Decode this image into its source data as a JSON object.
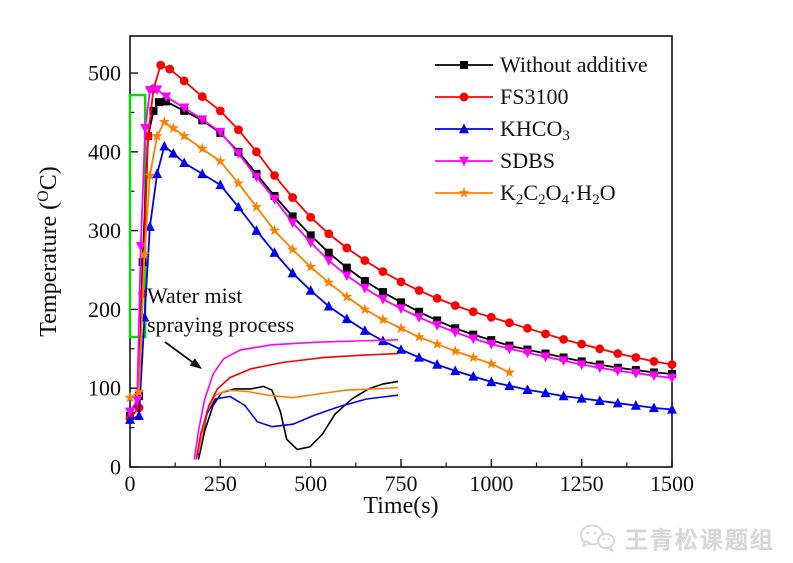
{
  "watermark": {
    "text": "王青松课题组",
    "icon": "wechat-icon",
    "color": "#d7d7d7"
  },
  "chart_data": {
    "type": "line",
    "title": "",
    "xlabel": "Time(s)",
    "ylabel": "Temperature (ᴼC)",
    "ylabel_parts": [
      {
        "text": "Temperature ("
      },
      {
        "text": "O",
        "style": "sup"
      },
      {
        "text": "C)"
      }
    ],
    "xlim": [
      0,
      1500
    ],
    "ylim": [
      0,
      500
    ],
    "x_ticks": [
      0,
      250,
      500,
      750,
      1000,
      1250,
      1500
    ],
    "x_minor_ticks": [
      125,
      375,
      625,
      875,
      1125,
      1375
    ],
    "y_ticks": [
      0,
      100,
      200,
      300,
      400,
      500
    ],
    "y_minor_ticks": [
      50,
      150,
      250,
      350,
      450
    ],
    "grid": false,
    "legend_position": "inside-top-right",
    "series": [
      {
        "name": "Without additive",
        "color": "#000000",
        "marker": "square",
        "label_parts": [
          {
            "text": "Without additive"
          }
        ],
        "points": [
          [
            0,
            65
          ],
          [
            25,
            90
          ],
          [
            35,
            260
          ],
          [
            50,
            420
          ],
          [
            65,
            452
          ],
          [
            80,
            463
          ],
          [
            100,
            464
          ],
          [
            150,
            452
          ],
          [
            200,
            440
          ],
          [
            250,
            424
          ],
          [
            300,
            400
          ],
          [
            350,
            372
          ],
          [
            400,
            344
          ],
          [
            450,
            318
          ],
          [
            500,
            294
          ],
          [
            550,
            272
          ],
          [
            600,
            253
          ],
          [
            650,
            236
          ],
          [
            700,
            222
          ],
          [
            750,
            209
          ],
          [
            800,
            197
          ],
          [
            850,
            186
          ],
          [
            900,
            176
          ],
          [
            950,
            168
          ],
          [
            1000,
            161
          ],
          [
            1050,
            154
          ],
          [
            1100,
            149
          ],
          [
            1150,
            144
          ],
          [
            1200,
            139
          ],
          [
            1250,
            134
          ],
          [
            1300,
            130
          ],
          [
            1350,
            126
          ],
          [
            1400,
            123
          ],
          [
            1450,
            120
          ],
          [
            1500,
            118
          ]
        ]
      },
      {
        "name": "FS3100",
        "color": "#ff0000",
        "marker": "circle",
        "label_parts": [
          {
            "text": "FS3100"
          }
        ],
        "points": [
          [
            0,
            62
          ],
          [
            25,
            75
          ],
          [
            35,
            220
          ],
          [
            50,
            420
          ],
          [
            65,
            480
          ],
          [
            85,
            510
          ],
          [
            110,
            505
          ],
          [
            150,
            490
          ],
          [
            200,
            470
          ],
          [
            250,
            452
          ],
          [
            300,
            428
          ],
          [
            350,
            400
          ],
          [
            400,
            370
          ],
          [
            450,
            342
          ],
          [
            500,
            317
          ],
          [
            550,
            296
          ],
          [
            600,
            278
          ],
          [
            650,
            262
          ],
          [
            700,
            248
          ],
          [
            750,
            235
          ],
          [
            800,
            224
          ],
          [
            850,
            214
          ],
          [
            900,
            205
          ],
          [
            950,
            197
          ],
          [
            1000,
            190
          ],
          [
            1050,
            183
          ],
          [
            1100,
            176
          ],
          [
            1150,
            169
          ],
          [
            1200,
            162
          ],
          [
            1250,
            156
          ],
          [
            1300,
            150
          ],
          [
            1350,
            144
          ],
          [
            1400,
            139
          ],
          [
            1450,
            134
          ],
          [
            1500,
            130
          ]
        ]
      },
      {
        "name": "KHCO3",
        "color": "#0000ee",
        "marker": "triangle-up",
        "label_parts": [
          {
            "text": "KHCO"
          },
          {
            "text": "3",
            "style": "sub"
          }
        ],
        "points": [
          [
            0,
            60
          ],
          [
            25,
            65
          ],
          [
            40,
            190
          ],
          [
            55,
            305
          ],
          [
            75,
            372
          ],
          [
            95,
            407
          ],
          [
            120,
            398
          ],
          [
            150,
            386
          ],
          [
            200,
            372
          ],
          [
            250,
            358
          ],
          [
            300,
            330
          ],
          [
            350,
            300
          ],
          [
            400,
            272
          ],
          [
            450,
            246
          ],
          [
            500,
            224
          ],
          [
            550,
            204
          ],
          [
            600,
            188
          ],
          [
            650,
            173
          ],
          [
            700,
            160
          ],
          [
            750,
            149
          ],
          [
            800,
            139
          ],
          [
            850,
            130
          ],
          [
            900,
            122
          ],
          [
            950,
            115
          ],
          [
            1000,
            108
          ],
          [
            1050,
            103
          ],
          [
            1100,
            98
          ],
          [
            1150,
            94
          ],
          [
            1200,
            90
          ],
          [
            1250,
            87
          ],
          [
            1300,
            84
          ],
          [
            1350,
            81
          ],
          [
            1400,
            78
          ],
          [
            1450,
            75
          ],
          [
            1500,
            73
          ]
        ]
      },
      {
        "name": "SDBS",
        "color": "#ff00ff",
        "marker": "triangle-down",
        "label_parts": [
          {
            "text": "SDBS"
          }
        ],
        "points": [
          [
            0,
            70
          ],
          [
            20,
            85
          ],
          [
            30,
            280
          ],
          [
            42,
            430
          ],
          [
            55,
            478
          ],
          [
            75,
            479
          ],
          [
            100,
            470
          ],
          [
            150,
            456
          ],
          [
            200,
            441
          ],
          [
            250,
            425
          ],
          [
            300,
            398
          ],
          [
            350,
            368
          ],
          [
            400,
            340
          ],
          [
            450,
            310
          ],
          [
            500,
            285
          ],
          [
            550,
            262
          ],
          [
            600,
            243
          ],
          [
            650,
            227
          ],
          [
            700,
            213
          ],
          [
            750,
            201
          ],
          [
            800,
            190
          ],
          [
            850,
            180
          ],
          [
            900,
            171
          ],
          [
            950,
            163
          ],
          [
            1000,
            156
          ],
          [
            1050,
            150
          ],
          [
            1100,
            145
          ],
          [
            1150,
            140
          ],
          [
            1200,
            135
          ],
          [
            1250,
            130
          ],
          [
            1300,
            126
          ],
          [
            1350,
            122
          ],
          [
            1400,
            119
          ],
          [
            1450,
            116
          ],
          [
            1500,
            113
          ]
        ]
      },
      {
        "name": "K2C2O4·H2O",
        "color": "#ff8000",
        "marker": "star",
        "label_parts": [
          {
            "text": "K"
          },
          {
            "text": "2",
            "style": "sub"
          },
          {
            "text": "C"
          },
          {
            "text": "2",
            "style": "sub"
          },
          {
            "text": "O"
          },
          {
            "text": "4",
            "style": "sub"
          },
          {
            "text": "·H"
          },
          {
            "text": "2",
            "style": "sub"
          },
          {
            "text": "O"
          }
        ],
        "points": [
          [
            0,
            88
          ],
          [
            25,
            95
          ],
          [
            40,
            270
          ],
          [
            55,
            370
          ],
          [
            75,
            420
          ],
          [
            95,
            438
          ],
          [
            120,
            430
          ],
          [
            150,
            420
          ],
          [
            200,
            404
          ],
          [
            250,
            388
          ],
          [
            300,
            360
          ],
          [
            350,
            330
          ],
          [
            400,
            300
          ],
          [
            450,
            276
          ],
          [
            500,
            254
          ],
          [
            550,
            234
          ],
          [
            600,
            216
          ],
          [
            650,
            200
          ],
          [
            700,
            187
          ],
          [
            750,
            176
          ],
          [
            800,
            165
          ],
          [
            850,
            156
          ],
          [
            900,
            147
          ],
          [
            950,
            139
          ],
          [
            1000,
            131
          ],
          [
            1050,
            120
          ]
        ]
      }
    ],
    "annotation": {
      "lines": [
        "Water mist",
        "spraying process"
      ],
      "has_arrow": true
    },
    "highlight_box": {
      "t_range": [
        0,
        42
      ],
      "T_range": [
        165,
        472
      ],
      "color": "#00dd00"
    },
    "inset": {
      "description": "marker-less zoom of curves during water mist spraying",
      "series": [
        {
          "color": "#000000",
          "points_norm": [
            [
              0.05,
              0.98
            ],
            [
              0.08,
              0.75
            ],
            [
              0.12,
              0.55
            ],
            [
              0.16,
              0.45
            ],
            [
              0.22,
              0.42
            ],
            [
              0.3,
              0.42
            ],
            [
              0.36,
              0.4
            ],
            [
              0.4,
              0.43
            ],
            [
              0.44,
              0.6
            ],
            [
              0.47,
              0.82
            ],
            [
              0.52,
              0.9
            ],
            [
              0.58,
              0.88
            ],
            [
              0.64,
              0.78
            ],
            [
              0.7,
              0.62
            ],
            [
              0.78,
              0.5
            ],
            [
              0.86,
              0.42
            ],
            [
              0.93,
              0.38
            ],
            [
              1,
              0.36
            ]
          ]
        },
        {
          "color": "#0000ee",
          "points_norm": [
            [
              0.05,
              0.95
            ],
            [
              0.09,
              0.62
            ],
            [
              0.13,
              0.5
            ],
            [
              0.2,
              0.48
            ],
            [
              0.27,
              0.55
            ],
            [
              0.33,
              0.68
            ],
            [
              0.4,
              0.72
            ],
            [
              0.5,
              0.7
            ],
            [
              0.6,
              0.63
            ],
            [
              0.72,
              0.56
            ],
            [
              0.85,
              0.5
            ],
            [
              1,
              0.47
            ]
          ]
        },
        {
          "color": "#ff8000",
          "points_norm": [
            [
              0.05,
              0.93
            ],
            [
              0.09,
              0.6
            ],
            [
              0.13,
              0.47
            ],
            [
              0.19,
              0.43
            ],
            [
              0.28,
              0.44
            ],
            [
              0.38,
              0.47
            ],
            [
              0.5,
              0.49
            ],
            [
              0.62,
              0.46
            ],
            [
              0.75,
              0.43
            ],
            [
              0.88,
              0.42
            ],
            [
              1,
              0.41
            ]
          ]
        },
        {
          "color": "#ff0000",
          "points_norm": [
            [
              0.04,
              0.98
            ],
            [
              0.06,
              0.78
            ],
            [
              0.1,
              0.55
            ],
            [
              0.14,
              0.42
            ],
            [
              0.2,
              0.33
            ],
            [
              0.3,
              0.26
            ],
            [
              0.45,
              0.21
            ],
            [
              0.65,
              0.17
            ],
            [
              0.85,
              0.15
            ],
            [
              1,
              0.14
            ]
          ]
        },
        {
          "color": "#ff00ff",
          "points_norm": [
            [
              0.03,
              0.98
            ],
            [
              0.05,
              0.75
            ],
            [
              0.08,
              0.5
            ],
            [
              0.12,
              0.3
            ],
            [
              0.17,
              0.18
            ],
            [
              0.25,
              0.11
            ],
            [
              0.4,
              0.07
            ],
            [
              0.6,
              0.05
            ],
            [
              0.8,
              0.04
            ],
            [
              1,
              0.03
            ]
          ]
        }
      ]
    }
  }
}
